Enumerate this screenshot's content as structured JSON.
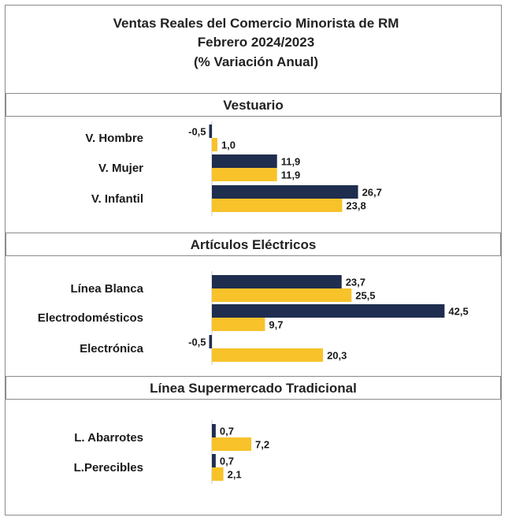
{
  "title": {
    "line1": "Ventas Reales del Comercio Minorista de RM",
    "line2": "Febrero 2024/2023",
    "line3": "(% Variación Anual)"
  },
  "colors": {
    "dark": "#1f2d4e",
    "yellow": "#f7c22a"
  },
  "chart_data": {
    "type": "bar",
    "orientation": "horizontal",
    "title": "Ventas Reales del Comercio Minorista de RM",
    "subtitle": "Febrero 2024/2023 (% Variación Anual)",
    "sections": [
      {
        "name": "Vestuario",
        "categories": [
          "V. Hombre",
          "V. Mujer",
          "V. Infantil"
        ],
        "series": [
          {
            "values": [
              -0.5,
              11.9,
              26.7
            ],
            "labels": [
              "-0,5",
              "11,9",
              "26,7"
            ]
          },
          {
            "values": [
              1.0,
              11.9,
              23.8
            ],
            "labels": [
              "1,0",
              "11,9",
              "23,8"
            ]
          }
        ]
      },
      {
        "name": "Artículos Eléctricos",
        "categories": [
          "Línea Blanca",
          "Electrodomésticos",
          "Electrónica"
        ],
        "series": [
          {
            "values": [
              23.7,
              42.5,
              -0.5
            ],
            "labels": [
              "23,7",
              "42,5",
              "-0,5"
            ]
          },
          {
            "values": [
              25.5,
              9.7,
              20.3
            ],
            "labels": [
              "25,5",
              "9,7",
              "20,3"
            ]
          }
        ]
      },
      {
        "name": "Línea Supermercado Tradicional",
        "categories": [
          "L. Abarrotes",
          "L.Perecibles"
        ],
        "series": [
          {
            "values": [
              0.7,
              0.7
            ],
            "labels": [
              "0,7",
              "0,7"
            ]
          },
          {
            "values": [
              7.2,
              2.1
            ],
            "labels": [
              "7,2",
              "2,1"
            ]
          }
        ]
      }
    ]
  }
}
